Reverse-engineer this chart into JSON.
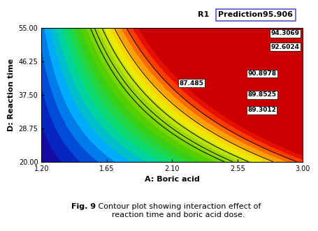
{
  "x_label": "A: Boric acid",
  "y_label": "D: Reaction time",
  "x_range": [
    1.2,
    3.0
  ],
  "y_range": [
    20.0,
    55.0
  ],
  "x_ticks": [
    1.2,
    1.65,
    2.1,
    2.55,
    3.0
  ],
  "y_ticks": [
    20.0,
    28.75,
    37.5,
    46.25,
    55.0
  ],
  "contour_levels": [
    89.3012,
    89.8525,
    90.8978,
    92.6024,
    94.3069
  ],
  "prediction_label": "Prediction95.906",
  "r1_label": "R1",
  "fig_caption_bold": "Fig. 9",
  "fig_caption_normal": " Contour plot showing interaction effect of\nreaction time and boric acid dose.",
  "vmin": 80.0,
  "vmax": 96.0,
  "contour_label_87": "87.485",
  "bg_color": "#ffffff",
  "label_positions": [
    [
      2.62,
      33.5,
      "89.3012"
    ],
    [
      2.62,
      37.5,
      "89.8525"
    ],
    [
      2.62,
      43.0,
      "90.8978"
    ],
    [
      2.78,
      50.0,
      "92.6024"
    ],
    [
      2.78,
      53.5,
      "94.3069"
    ]
  ],
  "colormap_stops": [
    [
      0.0,
      "#1a0099"
    ],
    [
      0.1,
      "#0033cc"
    ],
    [
      0.22,
      "#00aaff"
    ],
    [
      0.35,
      "#00dd88"
    ],
    [
      0.5,
      "#44cc00"
    ],
    [
      0.65,
      "#aadd00"
    ],
    [
      0.75,
      "#ffee00"
    ],
    [
      0.85,
      "#ff8800"
    ],
    [
      0.95,
      "#ff2200"
    ],
    [
      1.0,
      "#cc0000"
    ]
  ]
}
